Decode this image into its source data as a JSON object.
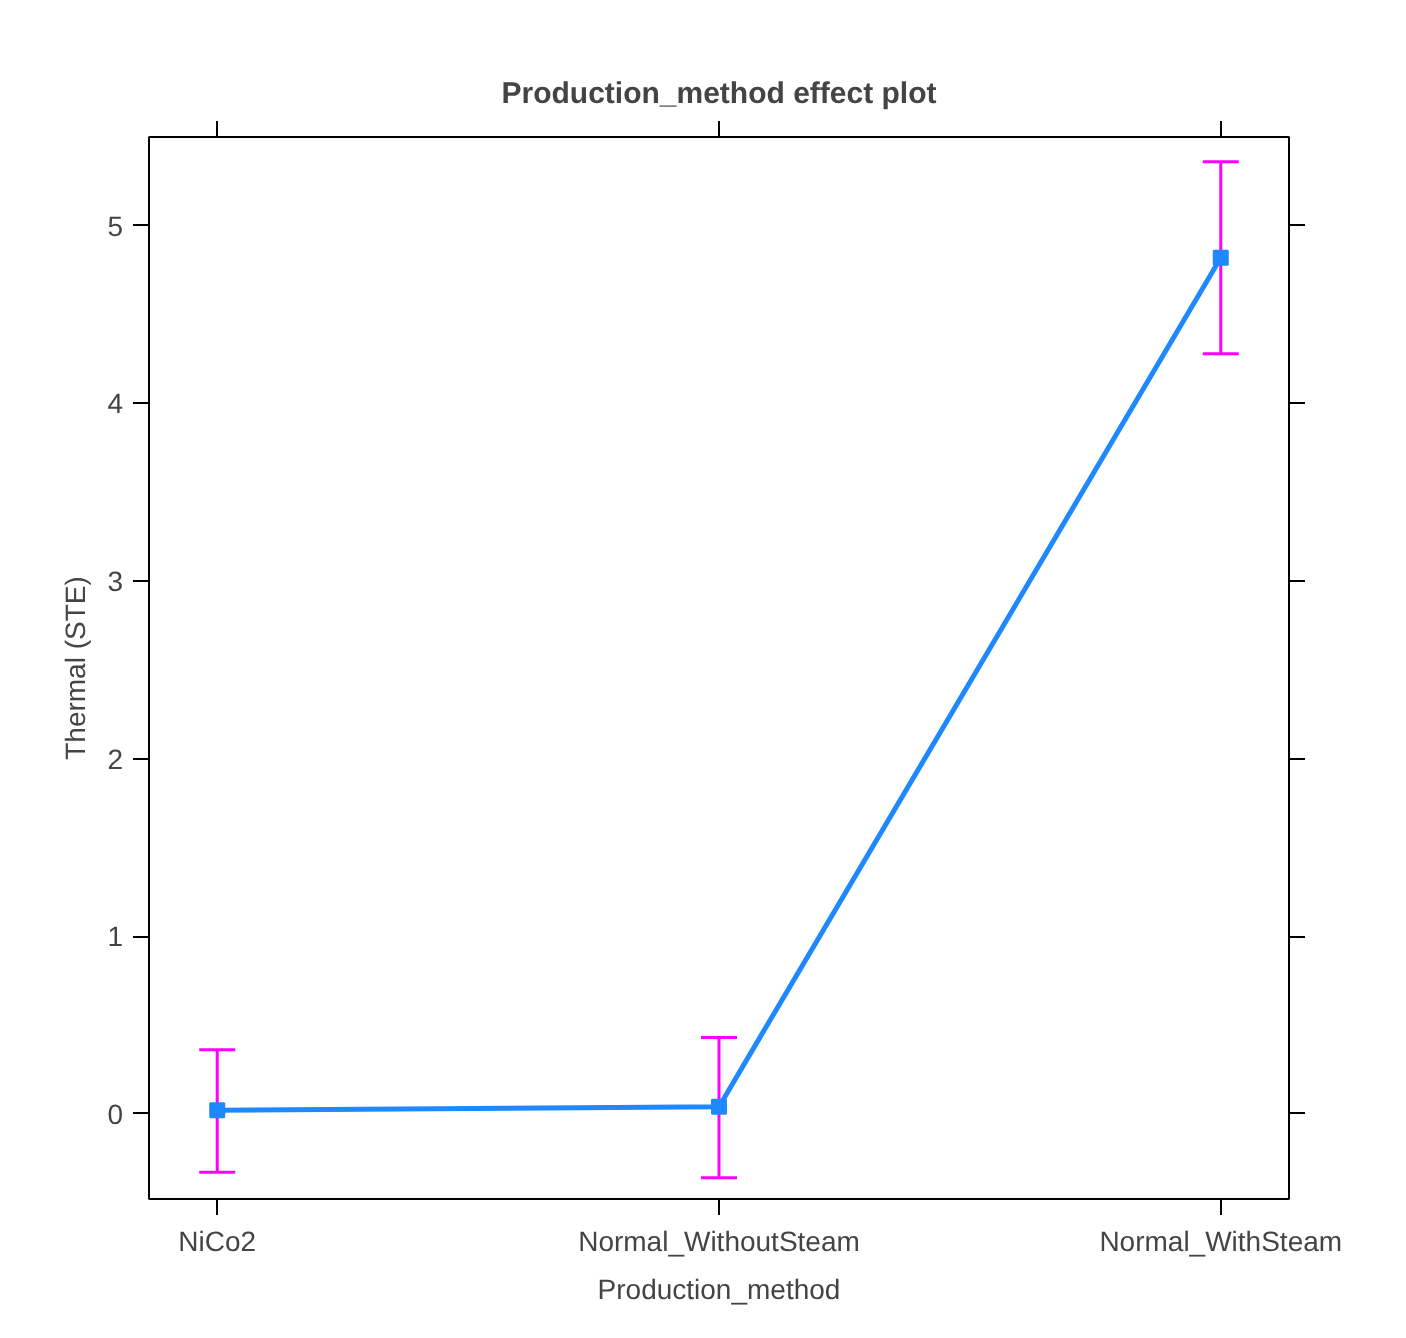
{
  "chart_data": {
    "type": "line",
    "title": "Production_method effect plot",
    "xlabel": "Production_method",
    "ylabel": "Thermal (STE)",
    "categories": [
      "NiCo2",
      "Normal_WithoutSteam",
      "Normal_WithSteam"
    ],
    "series": [
      {
        "color": "#1e88ff",
        "values": [
          0.02,
          0.04,
          4.82
        ],
        "errors": [
          [
            -0.33,
            0.36
          ],
          [
            -0.36,
            0.43
          ],
          [
            4.28,
            5.36
          ]
        ]
      }
    ],
    "ylim": [
      -0.48,
      5.5
    ],
    "yticks": [
      0,
      1,
      2,
      3,
      4,
      5
    ],
    "grid": false,
    "marker": "square",
    "line_style": "solid"
  }
}
